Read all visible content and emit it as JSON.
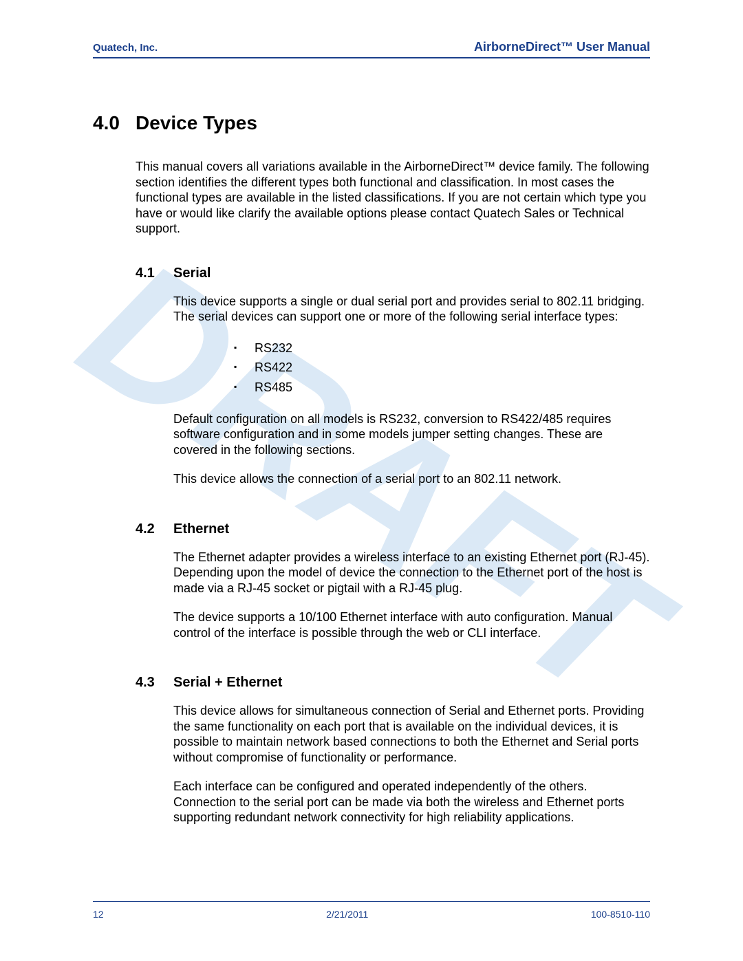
{
  "colors": {
    "brand": "#1a3f8b",
    "watermark": "#dbe9f6",
    "text": "#000000",
    "background": "#ffffff"
  },
  "typography": {
    "body_fontsize_pt": 13,
    "h1_fontsize_pt": 21,
    "h2_fontsize_pt": 15,
    "header_left_fontsize_pt": 11,
    "header_right_fontsize_pt": 13,
    "footer_fontsize_pt": 10,
    "watermark_fontsize_pt": 200
  },
  "watermark": "DRAFT",
  "header": {
    "left": "Quatech, Inc.",
    "right": "AirborneDirect™  User Manual"
  },
  "section": {
    "number": "4.0",
    "title": "Device Types",
    "intro": "This manual covers all variations available in the AirborneDirect™ device family. The following section identifies the different types both functional and classification. In most cases the functional types are available in the listed classifications. If you are not certain which type you have or would like clarify the available options please contact Quatech Sales or Technical support."
  },
  "subsections": [
    {
      "number": "4.1",
      "title": "Serial",
      "p1": "This device supports a single or dual serial port and provides serial to 802.11 bridging. The serial devices can support one or more of the following serial interface types:",
      "bullets": [
        "RS232",
        "RS422",
        "RS485"
      ],
      "p2": "Default configuration on all models is RS232, conversion to RS422/485 requires software configuration and in some models jumper setting changes. These are covered in the following sections.",
      "p3": "This device allows the connection of a serial port to an 802.11 network."
    },
    {
      "number": "4.2",
      "title": "Ethernet",
      "p1": "The Ethernet adapter provides a wireless interface to an existing Ethernet port (RJ-45). Depending upon the model of device the connection to the Ethernet port of the host is made via a RJ-45 socket or pigtail with a RJ-45 plug.",
      "p2": "The device supports a 10/100 Ethernet interface with auto configuration. Manual control of the interface is possible through the web or CLI interface."
    },
    {
      "number": "4.3",
      "title": "Serial + Ethernet",
      "p1": "This device allows for simultaneous connection of Serial and Ethernet ports. Providing the same functionality on each port that is available on the individual devices, it is possible to maintain network based connections to both the Ethernet and Serial ports without compromise of functionality or performance.",
      "p2": "Each interface can be configured and operated independently of the others. Connection to the serial port can be made via both the wireless and Ethernet ports supporting redundant network connectivity for high reliability applications."
    }
  ],
  "footer": {
    "page": "12",
    "date": "2/21/2011",
    "docnum": "100-8510-110"
  }
}
